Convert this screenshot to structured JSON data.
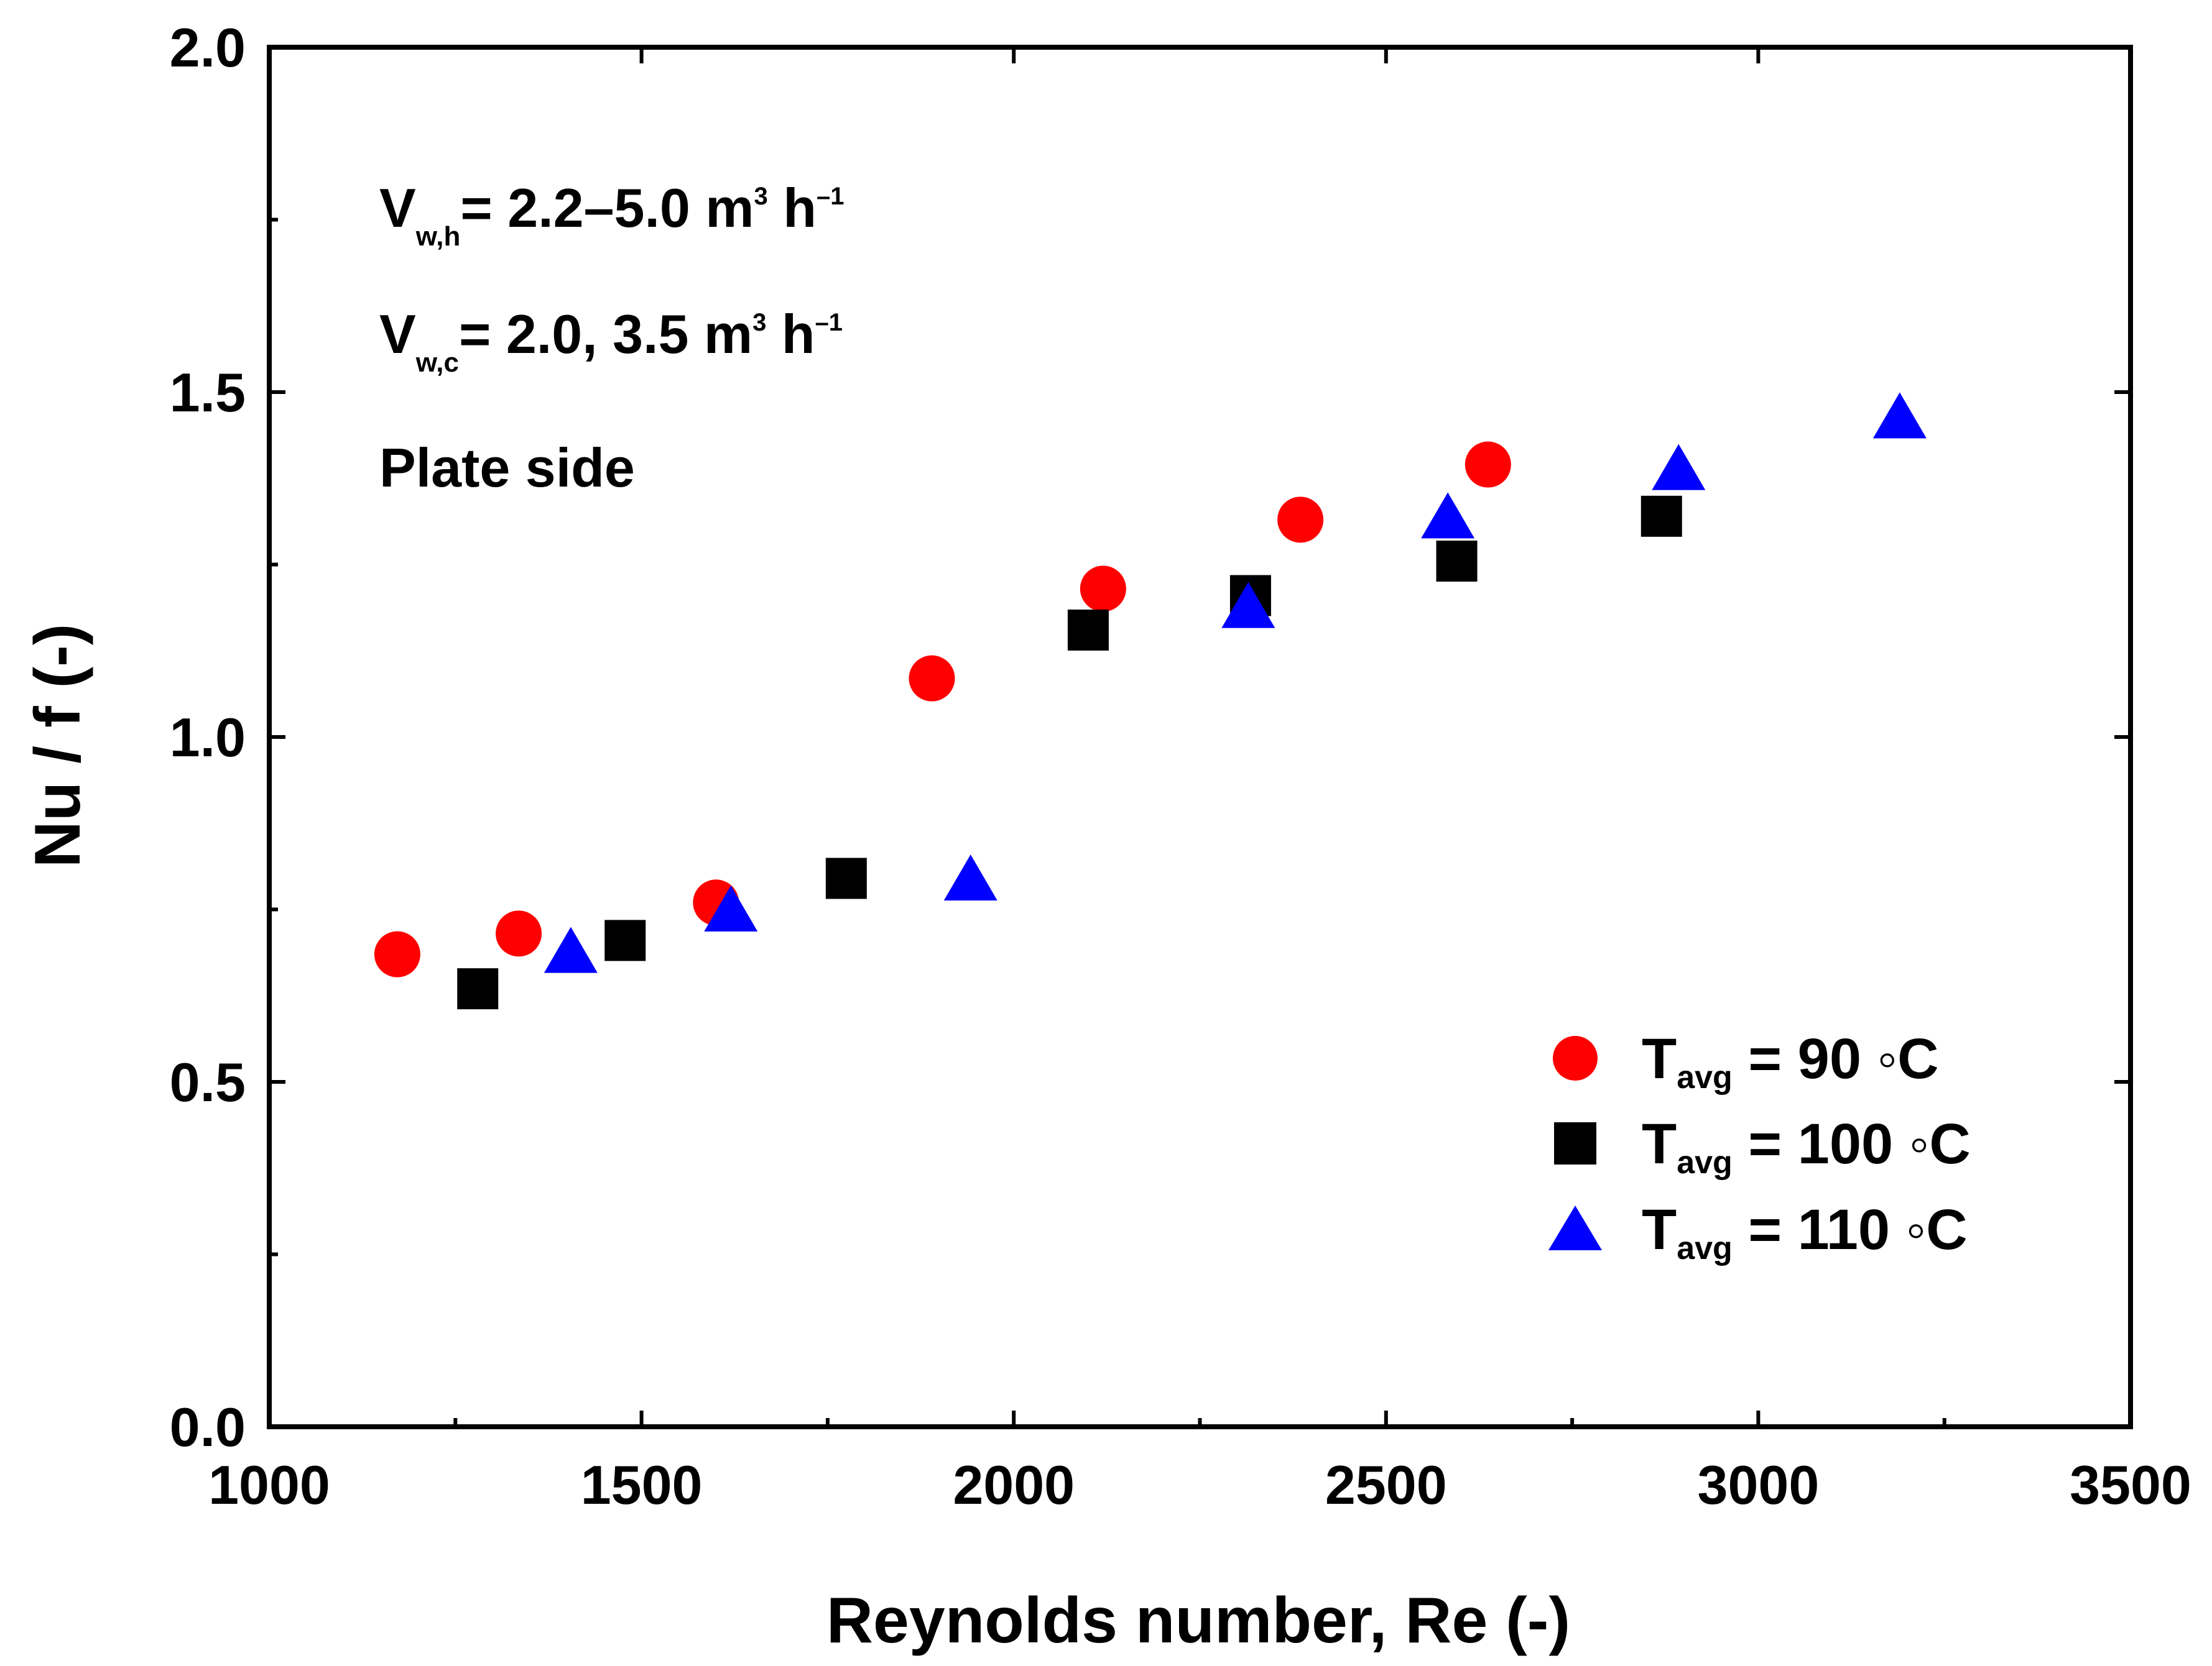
{
  "chart_data": {
    "type": "scatter",
    "title": "",
    "xlabel": "Reynolds number, Re (-)",
    "ylabel": "Nu / f (-)",
    "xlim": [
      1000,
      3500
    ],
    "ylim": [
      0.0,
      2.0
    ],
    "grid": false,
    "x_ticks": [
      1000,
      1500,
      2000,
      2500,
      3000,
      3500
    ],
    "x_tick_labels": [
      "1000",
      "1500",
      "2000",
      "2500",
      "3000",
      "3500"
    ],
    "x_minor_ticks": [
      1250,
      1750,
      2250,
      2750,
      3250
    ],
    "y_ticks": [
      0.0,
      0.5,
      1.0,
      1.5,
      2.0
    ],
    "y_tick_labels": [
      "0.0",
      "0.5",
      "1.0",
      "1.5",
      "2.0"
    ],
    "y_minor_ticks": [
      0.25,
      0.75,
      1.25,
      1.75
    ],
    "legend_position": "bottom-right",
    "series": [
      {
        "name": "T_avg = 90 °C",
        "marker": "circle",
        "color": "#ff0000",
        "x": [
          1172,
          1335,
          1600,
          1890,
          2120,
          2385,
          2637
        ],
        "y": [
          0.685,
          0.715,
          0.76,
          1.085,
          1.215,
          1.315,
          1.395
        ]
      },
      {
        "name": "T_avg = 100 °C",
        "marker": "square",
        "color": "#000000",
        "x": [
          1280,
          1478,
          1775,
          2100,
          2318,
          2595,
          2870
        ],
        "y": [
          0.635,
          0.705,
          0.795,
          1.155,
          1.205,
          1.255,
          1.32
        ]
      },
      {
        "name": "T_avg = 110 °C",
        "marker": "triangle",
        "color": "#0000ff",
        "x": [
          1405,
          1620,
          1942,
          2315,
          2583,
          2893,
          3190
        ],
        "y": [
          0.685,
          0.745,
          0.79,
          1.185,
          1.315,
          1.385,
          1.46
        ]
      }
    ],
    "annotations": [
      {
        "base": "V",
        "sub": "w,h",
        "text": "= 2.2–5.0 m",
        "sup": "3",
        "unit": " h",
        "unit_sup": "–1"
      },
      {
        "base": "V",
        "sub": "w,c",
        "text": "= 2.0, 3.5 m",
        "sup": "3",
        "unit": " h",
        "unit_sup": "–1"
      },
      {
        "text": "Plate side"
      }
    ],
    "legend": [
      {
        "base": "T",
        "sub": "avg",
        "text": " = 90 ◦C"
      },
      {
        "base": "T",
        "sub": "avg",
        "text": " = 100 ◦C"
      },
      {
        "base": "T",
        "sub": "avg",
        "text": " = 110 ◦C"
      }
    ]
  }
}
